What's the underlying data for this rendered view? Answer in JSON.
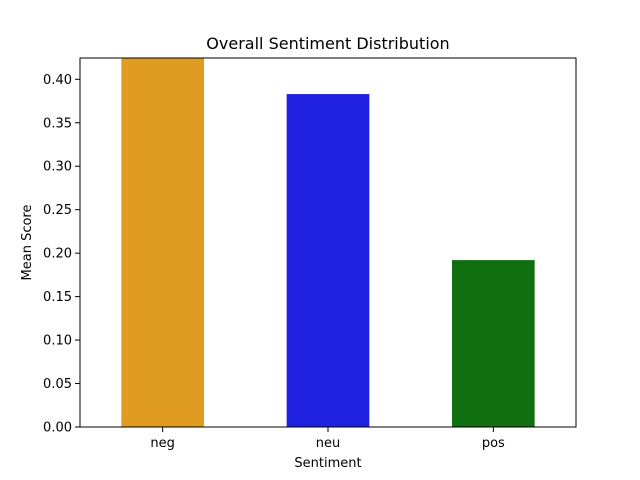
{
  "chart_data": {
    "type": "bar",
    "title": "Overall Sentiment Distribution",
    "xlabel": "Sentiment",
    "ylabel": "Mean Score",
    "categories": [
      "neg",
      "neu",
      "pos"
    ],
    "values": [
      0.424,
      0.383,
      0.192
    ],
    "colors": [
      "#e09c20",
      "#2020e0",
      "#107010"
    ],
    "ylim": [
      0,
      0.4245
    ],
    "yticks": [
      0.0,
      0.05,
      0.1,
      0.15,
      0.2,
      0.25,
      0.3,
      0.35,
      0.4
    ],
    "ytick_labels": [
      "0.00",
      "0.05",
      "0.10",
      "0.15",
      "0.20",
      "0.25",
      "0.30",
      "0.35",
      "0.40"
    ],
    "grid": false,
    "legend": "none"
  }
}
